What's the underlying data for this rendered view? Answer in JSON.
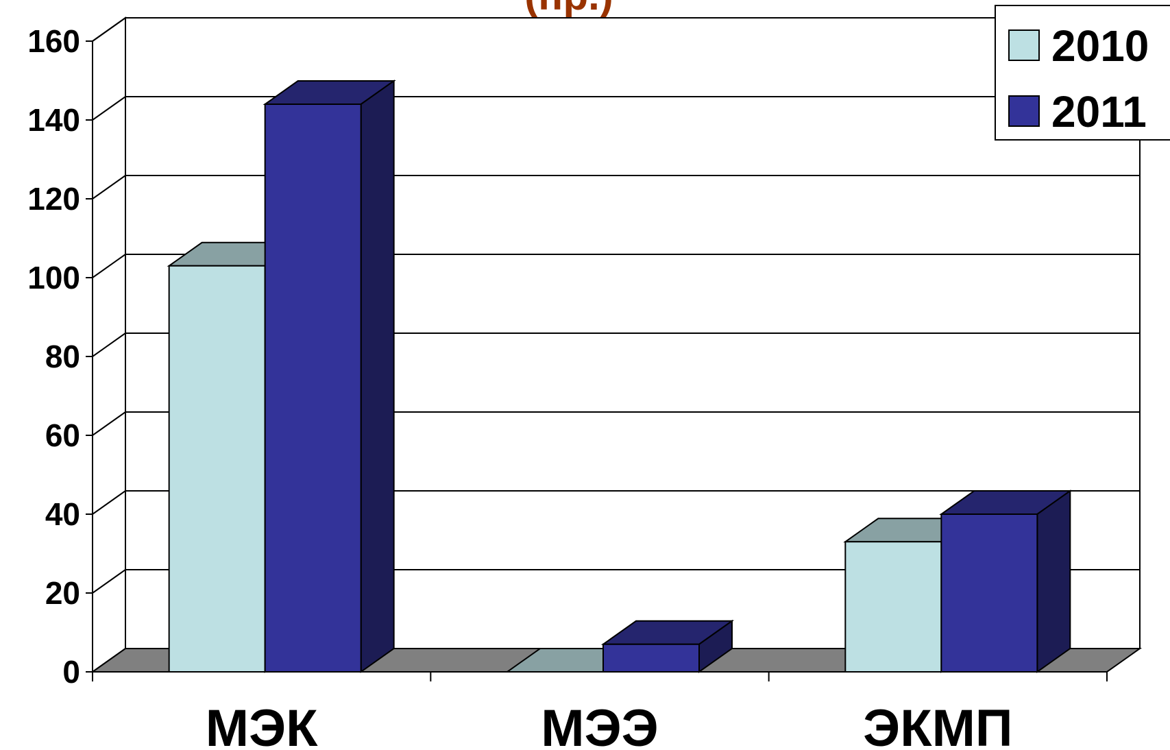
{
  "chart_data": {
    "type": "bar",
    "title": "(пр.)",
    "categories": [
      "МЭК",
      "МЭЭ",
      "ЭКМП"
    ],
    "series": [
      {
        "name": "2010",
        "values": [
          103,
          0,
          33
        ]
      },
      {
        "name": "2011",
        "values": [
          144,
          7,
          40
        ]
      }
    ],
    "ylim": [
      0,
      160
    ],
    "yticks": [
      "0",
      "20",
      "40",
      "60",
      "80",
      "100",
      "120",
      "140",
      "160"
    ],
    "grid": true,
    "legend_position": "top-right",
    "colors": {
      "2010": "#bde0e3",
      "2011": "#333399",
      "floor": "#808080",
      "title": "#993300"
    }
  }
}
